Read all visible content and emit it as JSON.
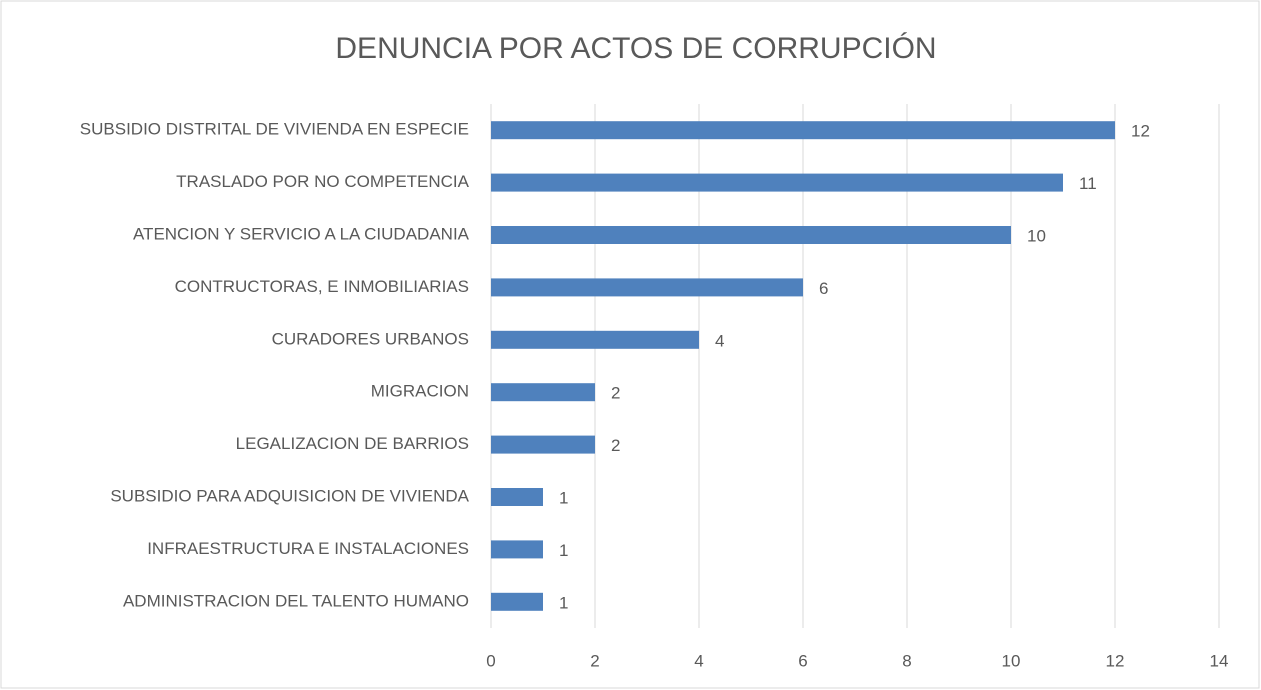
{
  "chart_data": {
    "type": "bar",
    "orientation": "horizontal",
    "title": "DENUNCIA POR ACTOS DE CORRUPCIÓN",
    "categories": [
      "SUBSIDIO DISTRITAL DE VIVIENDA EN ESPECIE",
      "TRASLADO POR NO COMPETENCIA",
      "ATENCION Y SERVICIO A LA CIUDADANIA",
      "CONTRUCTORAS, E INMOBILIARIAS",
      "CURADORES URBANOS",
      "MIGRACION",
      "LEGALIZACION DE BARRIOS",
      "SUBSIDIO PARA ADQUISICION DE VIVIENDA",
      "INFRAESTRUCTURA E INSTALACIONES",
      "ADMINISTRACION DEL TALENTO HUMANO"
    ],
    "values": [
      12,
      11,
      10,
      6,
      4,
      2,
      2,
      1,
      1,
      1
    ],
    "color": "#4f81bd",
    "xlim": [
      0,
      14
    ],
    "xticks": [
      0,
      2,
      4,
      6,
      8,
      10,
      12,
      14
    ],
    "grid": true,
    "data_labels": true
  }
}
